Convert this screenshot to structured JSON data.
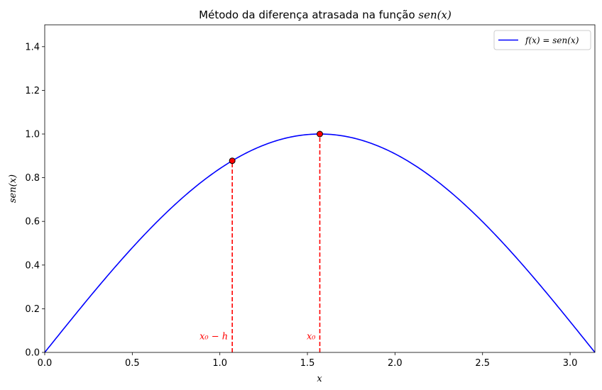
{
  "chart_data": {
    "type": "line",
    "title_plain": "Método da diferença atrasada na função ",
    "title_math": "sen(x)",
    "xlabel": "x",
    "ylabel": "sen(x)",
    "xlim": [
      0,
      3.14159
    ],
    "ylim": [
      0,
      1.5
    ],
    "xticks": [
      0.0,
      0.5,
      1.0,
      1.5,
      2.0,
      2.5,
      3.0
    ],
    "xtick_labels": [
      "0.0",
      "0.5",
      "1.0",
      "1.5",
      "2.0",
      "2.5",
      "3.0"
    ],
    "yticks": [
      0.0,
      0.2,
      0.4,
      0.6,
      0.8,
      1.0,
      1.2,
      1.4
    ],
    "ytick_labels": [
      "0.0",
      "0.2",
      "0.4",
      "0.6",
      "0.8",
      "1.0",
      "1.2",
      "1.4"
    ],
    "grid": false,
    "legend_position": "top-right",
    "series": [
      {
        "name": "f(x) = sen(x)",
        "color": "#0000ff",
        "function": "sin",
        "x_range": [
          0,
          3.14159
        ]
      }
    ],
    "points": [
      {
        "x": 1.0708,
        "y": 0.8776,
        "label": "x₀ − h"
      },
      {
        "x": 1.5708,
        "y": 1.0,
        "label": "x₀"
      }
    ],
    "point_color": "#ff0000",
    "point_edge_color": "#000000",
    "guide_color": "#ff0000",
    "annotation_color": "#ff0000"
  }
}
